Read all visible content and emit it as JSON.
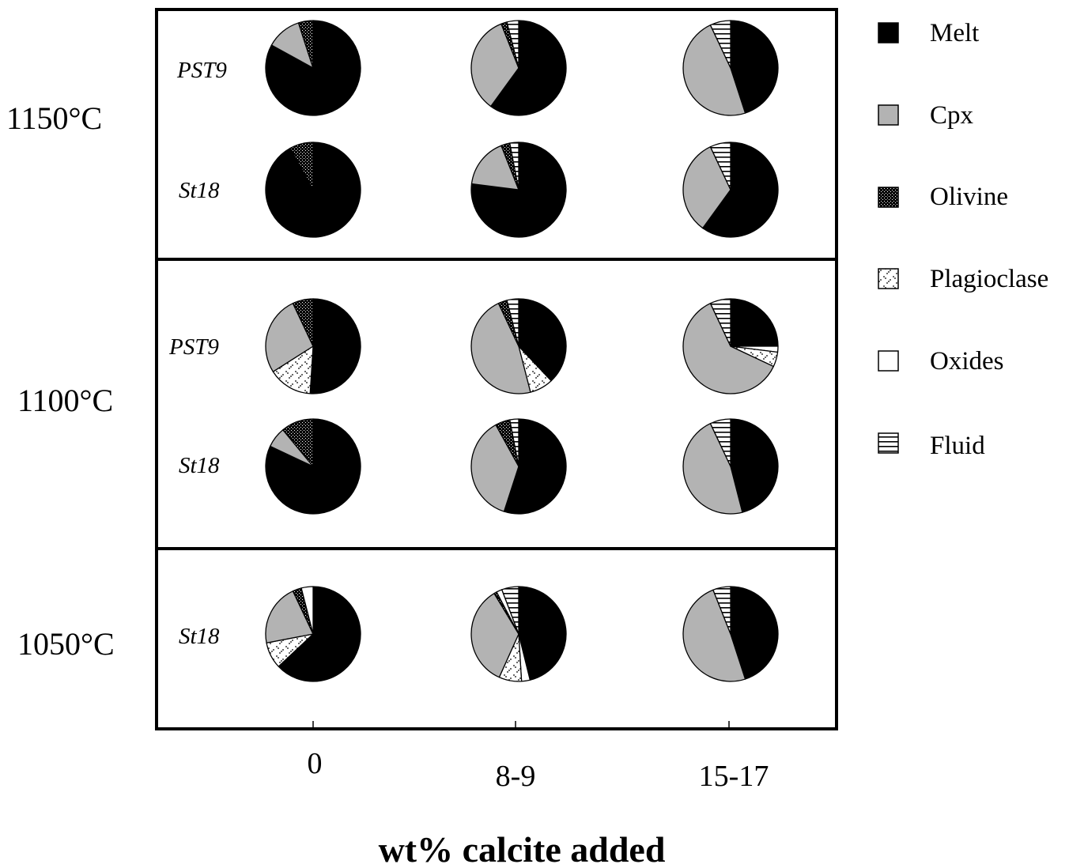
{
  "chart_data": {
    "type": "pie",
    "xlabel": "wt% calcite added",
    "x_categories": [
      "0",
      "8-9",
      "15-17"
    ],
    "temperatures": [
      "1150°C",
      "1100°C",
      "1050°C"
    ],
    "phases": [
      "Melt",
      "Cpx",
      "Olivine",
      "Plagioclase",
      "Oxides",
      "Fluid"
    ],
    "phase_fills": {
      "Melt": "#000000",
      "Cpx": "#b3b3b3",
      "Olivine": "crosshatch-dark",
      "Plagioclase": "dotted-light",
      "Oxides": "#ffffff",
      "Fluid": "horizontal-stripes"
    },
    "legend": {
      "position": "right",
      "items": [
        {
          "name": "Melt",
          "pattern": "melt"
        },
        {
          "name": "Cpx",
          "pattern": "cpx"
        },
        {
          "name": "Olivine",
          "pattern": "olivine"
        },
        {
          "name": "Plagioclase",
          "pattern": "plagioclase"
        },
        {
          "name": "Oxides",
          "pattern": "oxides"
        },
        {
          "name": "Fluid",
          "pattern": "fluid"
        }
      ]
    },
    "panels": [
      {
        "temperature": "1150°C",
        "rows": [
          {
            "sample": "PST9",
            "pies": [
              {
                "calcite": "0",
                "slices": [
                  [
                    "Melt",
                    83
                  ],
                  [
                    "Cpx",
                    12
                  ],
                  [
                    "Olivine",
                    5
                  ]
                ]
              },
              {
                "calcite": "8-9",
                "slices": [
                  [
                    "Melt",
                    60
                  ],
                  [
                    "Cpx",
                    34
                  ],
                  [
                    "Olivine",
                    2
                  ],
                  [
                    "Fluid",
                    4
                  ]
                ]
              },
              {
                "calcite": "15-17",
                "slices": [
                  [
                    "Melt",
                    45
                  ],
                  [
                    "Cpx",
                    48
                  ],
                  [
                    "Fluid",
                    7
                  ]
                ]
              }
            ]
          },
          {
            "sample": "St18",
            "pies": [
              {
                "calcite": "0",
                "slices": [
                  [
                    "Melt",
                    92
                  ],
                  [
                    "Olivine",
                    8
                  ]
                ]
              },
              {
                "calcite": "8-9",
                "slices": [
                  [
                    "Melt",
                    77
                  ],
                  [
                    "Cpx",
                    17
                  ],
                  [
                    "Olivine",
                    3
                  ],
                  [
                    "Fluid",
                    3
                  ]
                ]
              },
              {
                "calcite": "15-17",
                "slices": [
                  [
                    "Melt",
                    60
                  ],
                  [
                    "Cpx",
                    33
                  ],
                  [
                    "Fluid",
                    7
                  ]
                ]
              }
            ]
          }
        ]
      },
      {
        "temperature": "1100°C",
        "rows": [
          {
            "sample": "PST9",
            "pies": [
              {
                "calcite": "0",
                "slices": [
                  [
                    "Melt",
                    51
                  ],
                  [
                    "Plagioclase",
                    15
                  ],
                  [
                    "Cpx",
                    27
                  ],
                  [
                    "Olivine",
                    7
                  ]
                ]
              },
              {
                "calcite": "8-9",
                "slices": [
                  [
                    "Melt",
                    38
                  ],
                  [
                    "Plagioclase",
                    8
                  ],
                  [
                    "Cpx",
                    47
                  ],
                  [
                    "Olivine",
                    3
                  ],
                  [
                    "Fluid",
                    4
                  ]
                ]
              },
              {
                "calcite": "15-17",
                "slices": [
                  [
                    "Melt",
                    25
                  ],
                  [
                    "Oxides",
                    2
                  ],
                  [
                    "Plagioclase",
                    5
                  ],
                  [
                    "Cpx",
                    61
                  ],
                  [
                    "Fluid",
                    7
                  ]
                ]
              }
            ]
          },
          {
            "sample": "St18",
            "pies": [
              {
                "calcite": "0",
                "slices": [
                  [
                    "Melt",
                    82
                  ],
                  [
                    "Cpx",
                    7
                  ],
                  [
                    "Olivine",
                    11
                  ]
                ]
              },
              {
                "calcite": "8-9",
                "slices": [
                  [
                    "Melt",
                    55
                  ],
                  [
                    "Cpx",
                    37
                  ],
                  [
                    "Olivine",
                    5
                  ],
                  [
                    "Fluid",
                    3
                  ]
                ]
              },
              {
                "calcite": "15-17",
                "slices": [
                  [
                    "Melt",
                    46
                  ],
                  [
                    "Cpx",
                    47
                  ],
                  [
                    "Fluid",
                    7
                  ]
                ]
              }
            ]
          }
        ]
      },
      {
        "temperature": "1050°C",
        "rows": [
          {
            "sample": "St18",
            "pies": [
              {
                "calcite": "0",
                "slices": [
                  [
                    "Melt",
                    63
                  ],
                  [
                    "Plagioclase",
                    9
                  ],
                  [
                    "Cpx",
                    21
                  ],
                  [
                    "Olivine",
                    3
                  ],
                  [
                    "Oxides",
                    4
                  ]
                ]
              },
              {
                "calcite": "8-9",
                "slices": [
                  [
                    "Melt",
                    48
                  ],
                  [
                    "Oxides",
                    3
                  ],
                  [
                    "Plagioclase",
                    8
                  ],
                  [
                    "Cpx",
                    36
                  ],
                  [
                    "Olivine",
                    1
                  ],
                  [
                    "Oxides",
                    2
                  ],
                  [
                    "Fluid",
                    6
                  ]
                ]
              },
              {
                "calcite": "15-17",
                "slices": [
                  [
                    "Melt",
                    45
                  ],
                  [
                    "Cpx",
                    49
                  ],
                  [
                    "Fluid",
                    6
                  ]
                ]
              }
            ]
          }
        ]
      }
    ]
  }
}
